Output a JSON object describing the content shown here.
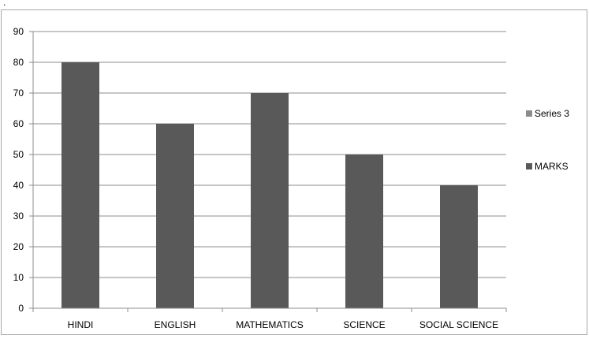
{
  "chart_data": {
    "type": "bar",
    "title": "",
    "xlabel": "",
    "ylabel": "",
    "categories": [
      "HINDI",
      "ENGLISH",
      "MATHEMATICS",
      "SCIENCE",
      "SOCIAL SCIENCE"
    ],
    "series": [
      {
        "name": "MARKS",
        "values": [
          80,
          60,
          70,
          50,
          40
        ],
        "color": "#595959"
      }
    ],
    "legend": {
      "position": "right",
      "entries": [
        {
          "name": "Series 3",
          "color": "#8c8c8c"
        },
        {
          "name": "MARKS",
          "color": "#595959"
        }
      ]
    },
    "ylim": [
      0,
      90
    ],
    "yticks": [
      "0",
      "10",
      "20",
      "30",
      "40",
      "50",
      "60",
      "70",
      "80",
      "90"
    ],
    "grid": true
  },
  "page": {
    "corner_mark": "."
  }
}
